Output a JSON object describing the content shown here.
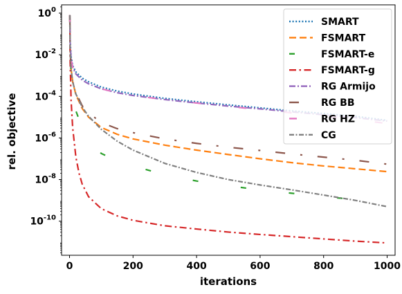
{
  "chart_data": {
    "type": "line",
    "xlabel": "iterations",
    "ylabel": "rel. objective",
    "xlim": [
      -25,
      1025
    ],
    "ylim": [
      2.3e-12,
      2.5
    ],
    "yscale": "log",
    "grid": false,
    "legend_position": "top-right",
    "x_ticks": [
      0,
      200,
      400,
      600,
      800,
      1000
    ],
    "x_tick_labels": [
      "0",
      "200",
      "400",
      "600",
      "800",
      "1000"
    ],
    "y_ticks": [
      1e-10,
      1e-08,
      1e-06,
      0.0001,
      0.01,
      1
    ],
    "y_tick_labels": [
      {
        "base": "10",
        "exp": "-10"
      },
      {
        "base": "10",
        "exp": "-8"
      },
      {
        "base": "10",
        "exp": "-6"
      },
      {
        "base": "10",
        "exp": "-4"
      },
      {
        "base": "10",
        "exp": "-2"
      },
      {
        "base": "10",
        "exp": "0"
      }
    ],
    "series": [
      {
        "name": "SMART",
        "color": "#1f77b4",
        "dash": "2 2.6",
        "x": [
          1,
          2,
          5,
          10,
          20,
          40,
          60,
          100,
          150,
          200,
          300,
          400,
          500,
          600,
          700,
          800,
          900,
          1000
        ],
        "y": [
          0.8,
          0.05,
          0.008,
          0.003,
          0.0015,
          0.00075,
          0.0005,
          0.00028,
          0.00018,
          0.00013,
          8e-05,
          5.5e-05,
          3.9e-05,
          2.8e-05,
          2e-05,
          1.5e-05,
          1.1e-05,
          7e-06
        ]
      },
      {
        "name": "FSMART",
        "color": "#ff7f0e",
        "dash": "10 5",
        "x": [
          1,
          2,
          5,
          10,
          20,
          40,
          60,
          100,
          150,
          200,
          300,
          400,
          500,
          600,
          700,
          800,
          900,
          1000
        ],
        "y": [
          0.8,
          0.02,
          0.002,
          0.0005,
          0.00012,
          2.6e-05,
          1e-05,
          3.2e-06,
          1.5e-06,
          9e-07,
          4.5e-07,
          2.6e-07,
          1.6e-07,
          1e-07,
          6.5e-08,
          4.5e-08,
          3.3e-08,
          2.4e-08
        ]
      },
      {
        "name": "FSMART-e",
        "color": "#2ca02c",
        "dash": "8 62",
        "x": [
          1,
          2,
          5,
          10,
          20,
          40,
          60,
          100,
          150,
          200,
          300,
          400,
          500,
          600,
          700,
          800,
          900,
          950
        ],
        "y": [
          0.8,
          0.015,
          0.001,
          0.00015,
          2e-05,
          3e-06,
          8e-07,
          1.8e-07,
          8e-08,
          4.5e-08,
          1.7e-08,
          8.5e-09,
          5e-09,
          3.2e-09,
          2.2e-09,
          1.5e-09,
          1.1e-09,
          9.5e-10
        ]
      },
      {
        "name": "FSMART-g",
        "color": "#d62728",
        "dash": "10 4.5 2.5 4.5",
        "x": [
          1,
          2,
          5,
          10,
          20,
          30,
          40,
          60,
          100,
          150,
          200,
          300,
          400,
          500,
          600,
          700,
          800,
          900,
          1000
        ],
        "y": [
          0.8,
          0.005,
          6e-05,
          3e-06,
          1.2e-07,
          2e-08,
          6e-09,
          1.5e-09,
          4e-10,
          1.8e-10,
          1.1e-10,
          6e-11,
          4.2e-11,
          3e-11,
          2.3e-11,
          1.8e-11,
          1.4e-11,
          1.1e-11,
          9e-12
        ]
      },
      {
        "name": "RG Armijo",
        "color": "#9467bd",
        "dash": "9 3 2 3",
        "x": [
          1,
          2,
          5,
          10,
          20,
          40,
          60,
          100,
          150,
          200,
          300,
          400,
          500,
          600,
          700,
          800,
          900,
          1000
        ],
        "y": [
          0.8,
          0.04,
          0.006,
          0.0025,
          0.0012,
          0.0006,
          0.0004,
          0.00023,
          0.00015,
          0.00011,
          7e-05,
          4.8e-05,
          3.4e-05,
          2.5e-05,
          1.8e-05,
          1.3e-05,
          9.5e-06,
          6.5e-06
        ]
      },
      {
        "name": "RG BB",
        "color": "#8c564b",
        "dash": "14 22 3 22",
        "x": [
          1,
          2,
          5,
          10,
          20,
          40,
          60,
          100,
          150,
          200,
          300,
          400,
          500,
          600,
          700,
          800,
          900,
          1000
        ],
        "y": [
          0.8,
          0.02,
          0.002,
          0.0005,
          0.00015,
          3.5e-05,
          1.6e-05,
          5.5e-06,
          2.8e-06,
          1.8e-06,
          9e-07,
          5.5e-07,
          3.6e-07,
          2.5e-07,
          1.7e-07,
          1.2e-07,
          8.5e-08,
          5.5e-08
        ]
      },
      {
        "name": "RG HZ",
        "color": "#e377c2",
        "dash": "11 55",
        "x": [
          1,
          2,
          5,
          10,
          20,
          40,
          60,
          100,
          150,
          200,
          300,
          400,
          500,
          600,
          700,
          800,
          900,
          1000
        ],
        "y": [
          0.8,
          0.04,
          0.006,
          0.0025,
          0.0012,
          0.0006,
          0.0004,
          0.00023,
          0.00015,
          0.00011,
          7e-05,
          4.8e-05,
          3.3e-05,
          2.3e-05,
          1.6e-05,
          1.1e-05,
          7.5e-06,
          5e-06
        ]
      },
      {
        "name": "CG",
        "color": "#7f7f7f",
        "dash": "7 2.5 2 2.5",
        "x": [
          1,
          2,
          5,
          10,
          20,
          40,
          60,
          100,
          150,
          200,
          300,
          400,
          500,
          600,
          700,
          800,
          900,
          1000
        ],
        "y": [
          0.8,
          0.015,
          0.002,
          0.0005,
          0.00013,
          3e-05,
          1.1e-05,
          2.6e-06,
          7e-07,
          2.6e-07,
          6e-08,
          2.2e-08,
          1e-08,
          5.5e-09,
          3.2e-09,
          1.8e-09,
          1e-09,
          5e-10
        ]
      }
    ]
  }
}
